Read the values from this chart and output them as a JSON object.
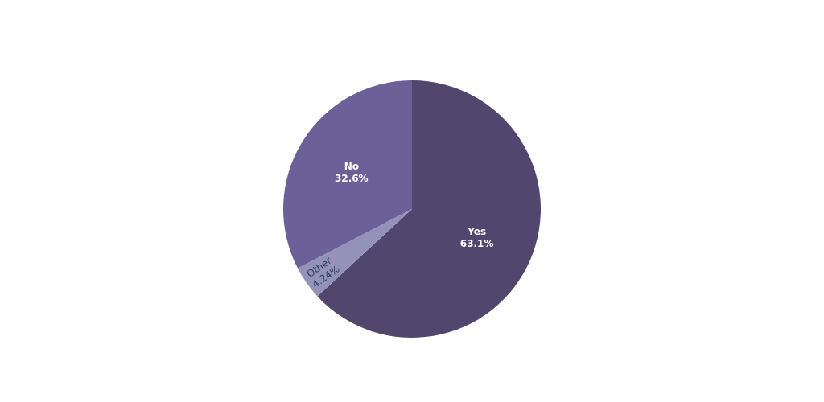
{
  "chart_data": {
    "type": "pie",
    "categories": [
      "Yes",
      "Other",
      "No"
    ],
    "values": [
      63.1,
      4.24,
      32.6
    ],
    "colors": [
      "#51466e",
      "#9491bb",
      "#6b6198"
    ],
    "value_labels": [
      "63.1%",
      "4.24%",
      "32.6%"
    ],
    "legend": false
  }
}
